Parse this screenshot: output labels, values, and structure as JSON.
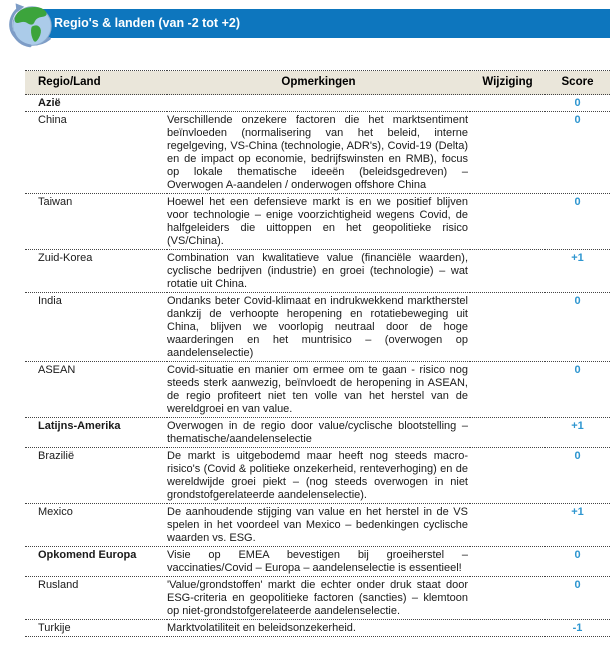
{
  "banner": {
    "title": "Regio's & landen (van -2 tot +2)",
    "icon": "globe-icon"
  },
  "colors": {
    "banner_blue": "#0D76BE",
    "score_blue": "#2E96D0",
    "header_beige": "#EAE6DA"
  },
  "table": {
    "columns": [
      "Regio/Land",
      "Opmerkingen",
      "Wijziging",
      "Score"
    ],
    "rows": [
      {
        "region": "Azië",
        "bold": true,
        "comment": "",
        "wijziging": "",
        "score": "0"
      },
      {
        "region": "China",
        "bold": false,
        "comment": "Verschillende onzekere factoren die het marktsentiment beïnvloeden (normalisering van het beleid, interne regelgeving, VS-China (technologie, ADR's), Covid-19 (Delta) en de impact op economie, bedrijfswinsten en RMB), focus op lokale thematische ideeën (beleidsgedreven) – Overwogen A-aandelen / onderwogen offshore China",
        "wijziging": "",
        "score": "0"
      },
      {
        "region": "Taiwan",
        "bold": false,
        "comment": "Hoewel het een defensieve markt is en we positief blijven voor technologie – enige voorzichtigheid wegens Covid, de halfgeleiders die uittoppen en het geopolitieke risico (VS/China).",
        "wijziging": "",
        "score": "0"
      },
      {
        "region": "Zuid-Korea",
        "bold": false,
        "comment": "Combination van kwalitatieve value (financiële waarden), cyclische bedrijven (industrie) en groei (technologie) – wat rotatie uit China.",
        "wijziging": "",
        "score": "+1"
      },
      {
        "region": "India",
        "bold": false,
        "comment": "Ondanks beter Covid-klimaat en indrukwekkend marktherstel dankzij de verhoopte heropening en rotatiebeweging uit China, blijven we voorlopig neutraal door de hoge waarderingen en het muntrisico – (overwogen op aandelenselectie)",
        "wijziging": "",
        "score": "0"
      },
      {
        "region": "ASEAN",
        "bold": false,
        "comment": "Covid-situatie en manier om ermee om te gaan - risico nog steeds sterk aanwezig, beïnvloedt de heropening in ASEAN, de regio profiteert niet ten volle van het herstel van de wereldgroei en van value.",
        "wijziging": "",
        "score": "0"
      },
      {
        "region": "Latijns-Amerika",
        "bold": true,
        "comment": "Overwogen in de regio door value/cyclische blootstelling – thematische/aandelenselectie",
        "wijziging": "",
        "score": "+1"
      },
      {
        "region": "Brazilië",
        "bold": false,
        "comment": "De markt is uitgebodemd maar heeft nog steeds macro-risico's (Covid & politieke onzekerheid, renteverhoging) en de wereldwijde groei piekt – (nog steeds overwogen in niet grondstofgerelateerde aandelenselectie).",
        "wijziging": "",
        "score": "0"
      },
      {
        "region": "Mexico",
        "bold": false,
        "comment": "De aanhoudende stijging van value en het herstel in de VS spelen in het voordeel van Mexico – bedenkingen cyclische waarden vs. ESG.",
        "wijziging": "",
        "score": "+1"
      },
      {
        "region": "Opkomend Europa",
        "bold": true,
        "comment": "Visie op EMEA bevestigen bij groeiherstel – vaccinaties/Covid – Europa – aandelenselectie is essentieel!",
        "wijziging": "",
        "score": "0"
      },
      {
        "region": "Rusland",
        "bold": false,
        "comment": "'Value/grondstoffen' markt die echter onder druk staat door ESG-criteria en geopolitieke factoren (sancties) – klemtoon op niet-grondstofgerelateerde aandelenselectie.",
        "wijziging": "",
        "score": "0"
      },
      {
        "region": "Turkije",
        "bold": false,
        "comment": "Marktvolatiliteit en beleidsonzekerheid.",
        "wijziging": "",
        "score": "-1"
      }
    ]
  }
}
